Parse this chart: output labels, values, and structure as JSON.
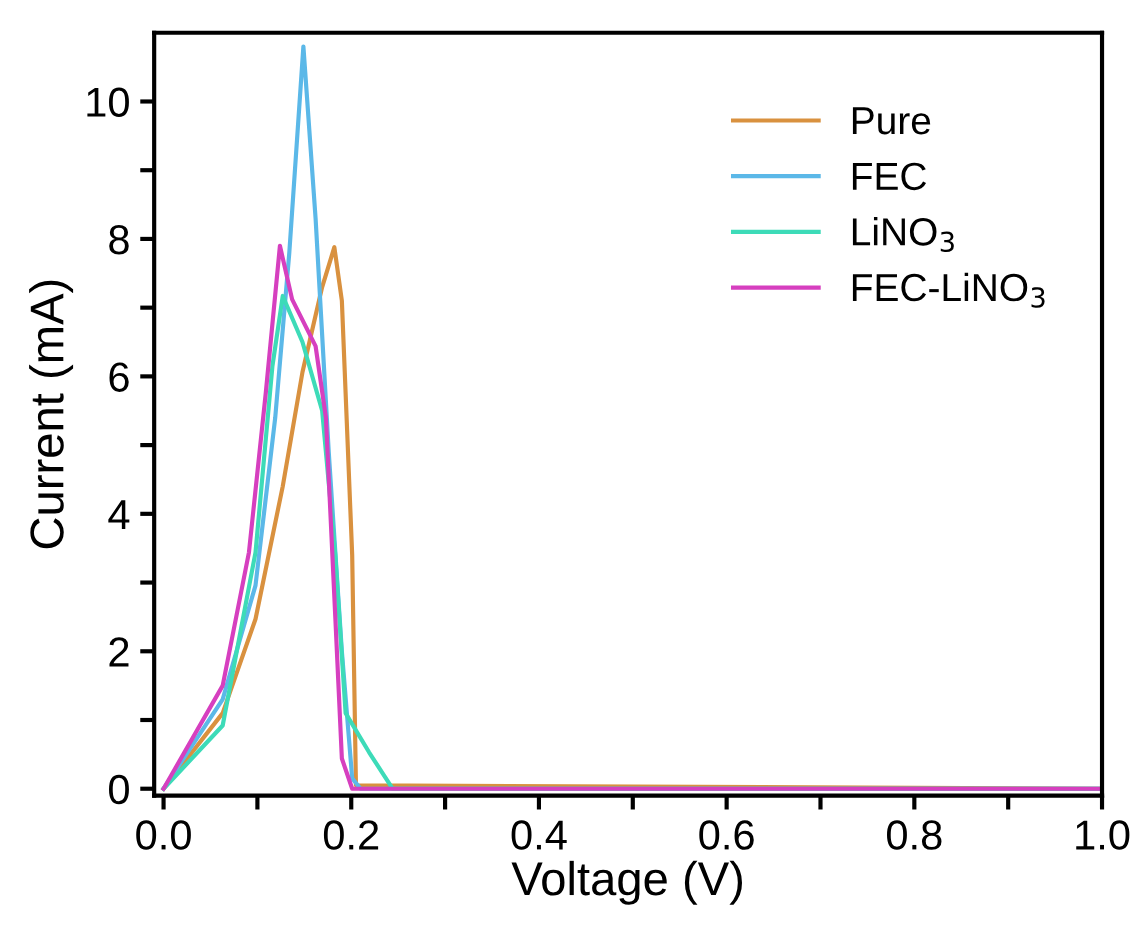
{
  "chart_data": {
    "type": "line",
    "xlabel": "Voltage (V)",
    "ylabel": "Current (mA)",
    "xlim": [
      -0.01,
      1.0
    ],
    "ylim": [
      -0.1,
      11.0
    ],
    "xticks": [
      {
        "value": 0,
        "label": "0.0"
      },
      {
        "value": 0.1,
        "label": null
      },
      0.2,
      {
        "value": 0.3,
        "label": null
      },
      0.4,
      {
        "value": 0.5,
        "label": null
      },
      0.6,
      {
        "value": 0.7,
        "label": null
      },
      0.8,
      {
        "value": 0.9,
        "label": null
      },
      {
        "value": 1,
        "label": "1.0"
      }
    ],
    "yticks": [
      0,
      {
        "value": 1,
        "label": null
      },
      2,
      {
        "value": 3,
        "label": null
      },
      4,
      {
        "value": 5,
        "label": null
      },
      6,
      {
        "value": 7,
        "label": null
      },
      8,
      {
        "value": 9,
        "label": null
      },
      10
    ],
    "grid": false,
    "legend": "top right",
    "marker": "none",
    "line_style": "solid",
    "series": [
      {
        "name": "Pure",
        "color": "#d9913f",
        "x": [
          0,
          0.063,
          0.098,
          0.127,
          0.148,
          0.169,
          0.182,
          0.19,
          0.201,
          0.205,
          1.0
        ],
        "values": [
          0,
          1.1,
          2.47,
          4.4,
          6.06,
          7.3,
          7.88,
          7.1,
          3.4,
          0.05,
          0
        ]
      },
      {
        "name": "FEC",
        "color": "#5bb8e8",
        "x": [
          0,
          0.063,
          0.098,
          0.119,
          0.134,
          0.149,
          0.162,
          0.176,
          0.19,
          0.201,
          0.21,
          1.0
        ],
        "values": [
          0,
          1.3,
          2.96,
          5.4,
          7.8,
          10.8,
          8.3,
          4.9,
          2.0,
          0.15,
          0,
          0
        ]
      },
      {
        "name": "LiNO$_{3}$",
        "color": "#3ddbb8",
        "x": [
          0,
          0.063,
          0.098,
          0.116,
          0.127,
          0.148,
          0.169,
          0.183,
          0.194,
          0.219,
          0.244,
          1.0
        ],
        "values": [
          0,
          0.92,
          3.44,
          6.15,
          7.17,
          6.5,
          5.5,
          3.4,
          1.1,
          0.53,
          0,
          0
        ]
      },
      {
        "name": "FEC-LiNO$_{3}$",
        "color": "#d63fbf",
        "x": [
          0,
          0.063,
          0.091,
          0.109,
          0.124,
          0.137,
          0.162,
          0.173,
          0.183,
          0.19,
          0.201,
          1.0
        ],
        "values": [
          0,
          1.5,
          3.44,
          5.77,
          7.9,
          7.12,
          6.44,
          5.4,
          2.5,
          0.44,
          0,
          0
        ]
      }
    ]
  }
}
